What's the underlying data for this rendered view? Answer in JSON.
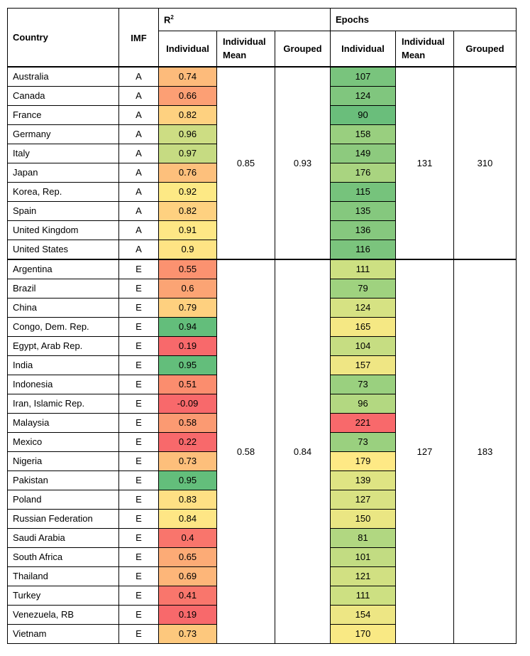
{
  "headers": {
    "country": "Country",
    "imf": "IMF",
    "r2_group": "R",
    "r2_sup": "2",
    "epochs_group": "Epochs",
    "individual": "Individual",
    "individual_mean": "Individual Mean",
    "grouped": "Grouped"
  },
  "groups": [
    {
      "imf": "A",
      "r2_individual_mean": "0.85",
      "r2_grouped": "0.93",
      "epochs_individual_mean": "131",
      "epochs_grouped": "310",
      "rows": [
        {
          "country": "Australia",
          "imf": "A",
          "r2": "0.74",
          "r2_color": "#fdbb7b",
          "epochs": "107",
          "epochs_color": "#79c47d"
        },
        {
          "country": "Canada",
          "imf": "A",
          "r2": "0.66",
          "r2_color": "#fc9f74",
          "epochs": "124",
          "epochs_color": "#80c67e"
        },
        {
          "country": "France",
          "imf": "A",
          "r2": "0.82",
          "r2_color": "#fed180",
          "epochs": "90",
          "epochs_color": "#6abe7b"
        },
        {
          "country": "Germany",
          "imf": "A",
          "r2": "0.96",
          "r2_color": "#cddd83",
          "epochs": "158",
          "epochs_color": "#99cf7f"
        },
        {
          "country": "Italy",
          "imf": "A",
          "r2": "0.97",
          "r2_color": "#c6db82",
          "epochs": "149",
          "epochs_color": "#8dca7e"
        },
        {
          "country": "Japan",
          "imf": "A",
          "r2": "0.76",
          "r2_color": "#fdc07c",
          "epochs": "176",
          "epochs_color": "#a9d480"
        },
        {
          "country": "Korea, Rep.",
          "imf": "A",
          "r2": "0.92",
          "r2_color": "#fde985",
          "epochs": "115",
          "epochs_color": "#76c37c"
        },
        {
          "country": "Spain",
          "imf": "A",
          "r2": "0.82",
          "r2_color": "#fed180",
          "epochs": "135",
          "epochs_color": "#85c87e"
        },
        {
          "country": "United Kingdom",
          "imf": "A",
          "r2": "0.91",
          "r2_color": "#fee785",
          "epochs": "136",
          "epochs_color": "#86c87e"
        },
        {
          "country": "United States",
          "imf": "A",
          "r2": "0.9",
          "r2_color": "#fee484",
          "epochs": "116",
          "epochs_color": "#7bc47d"
        }
      ]
    },
    {
      "imf": "E",
      "r2_individual_mean": "0.58",
      "r2_grouped": "0.84",
      "epochs_individual_mean": "127",
      "epochs_grouped": "183",
      "rows": [
        {
          "country": "Argentina",
          "imf": "E",
          "r2": "0.55",
          "r2_color": "#fb9270",
          "epochs": "111",
          "epochs_color": "#cde082"
        },
        {
          "country": "Brazil",
          "imf": "E",
          "r2": "0.6",
          "r2_color": "#fba474",
          "epochs": "79",
          "epochs_color": "#9fd27f"
        },
        {
          "country": "China",
          "imf": "E",
          "r2": "0.79",
          "r2_color": "#fed07f",
          "epochs": "124",
          "epochs_color": "#d6e283"
        },
        {
          "country": "Congo, Dem. Rep.",
          "imf": "E",
          "r2": "0.94",
          "r2_color": "#63be7b",
          "epochs": "165",
          "epochs_color": "#f5e884"
        },
        {
          "country": "Egypt, Arab Rep.",
          "imf": "E",
          "r2": "0.19",
          "r2_color": "#f8696b",
          "epochs": "104",
          "epochs_color": "#c6dd82"
        },
        {
          "country": "India",
          "imf": "E",
          "r2": "0.95",
          "r2_color": "#63be7b",
          "epochs": "157",
          "epochs_color": "#efe684"
        },
        {
          "country": "Indonesia",
          "imf": "E",
          "r2": "0.51",
          "r2_color": "#fb8d6e",
          "epochs": "73",
          "epochs_color": "#9ad07f"
        },
        {
          "country": "Iran, Islamic Rep.",
          "imf": "E",
          "r2": "-0.09",
          "r2_color": "#f8696b",
          "epochs": "96",
          "epochs_color": "#b3d881"
        },
        {
          "country": "Malaysia",
          "imf": "E",
          "r2": "0.58",
          "r2_color": "#fb9a72",
          "epochs": "221",
          "epochs_color": "#f8696b"
        },
        {
          "country": "Mexico",
          "imf": "E",
          "r2": "0.22",
          "r2_color": "#f8696b",
          "epochs": "73",
          "epochs_color": "#9ad07f"
        },
        {
          "country": "Nigeria",
          "imf": "E",
          "r2": "0.73",
          "r2_color": "#fdbf7b",
          "epochs": "179",
          "epochs_color": "#fee985"
        },
        {
          "country": "Pakistan",
          "imf": "E",
          "r2": "0.95",
          "r2_color": "#63be7b",
          "epochs": "139",
          "epochs_color": "#dfe483"
        },
        {
          "country": "Poland",
          "imf": "E",
          "r2": "0.83",
          "r2_color": "#fee084",
          "epochs": "127",
          "epochs_color": "#d9e283"
        },
        {
          "country": "Russian Federation",
          "imf": "E",
          "r2": "0.84",
          "r2_color": "#fee685",
          "epochs": "150",
          "epochs_color": "#eae683"
        },
        {
          "country": "Saudi Arabia",
          "imf": "E",
          "r2": "0.4",
          "r2_color": "#f9756c",
          "epochs": "81",
          "epochs_color": "#b1d781"
        },
        {
          "country": "South Africa",
          "imf": "E",
          "r2": "0.65",
          "r2_color": "#fcab76",
          "epochs": "101",
          "epochs_color": "#c2dc82"
        },
        {
          "country": "Thailand",
          "imf": "E",
          "r2": "0.69",
          "r2_color": "#fdb679",
          "epochs": "121",
          "epochs_color": "#d1e082"
        },
        {
          "country": "Turkey",
          "imf": "E",
          "r2": "0.41",
          "r2_color": "#f9766c",
          "epochs": "111",
          "epochs_color": "#cde082"
        },
        {
          "country": "Venezuela, RB",
          "imf": "E",
          "r2": "0.19",
          "r2_color": "#f8696b",
          "epochs": "154",
          "epochs_color": "#ede684"
        },
        {
          "country": "Vietnam",
          "imf": "E",
          "r2": "0.73",
          "r2_color": "#fdc87d",
          "epochs": "170",
          "epochs_color": "#f9e984"
        }
      ]
    }
  ]
}
